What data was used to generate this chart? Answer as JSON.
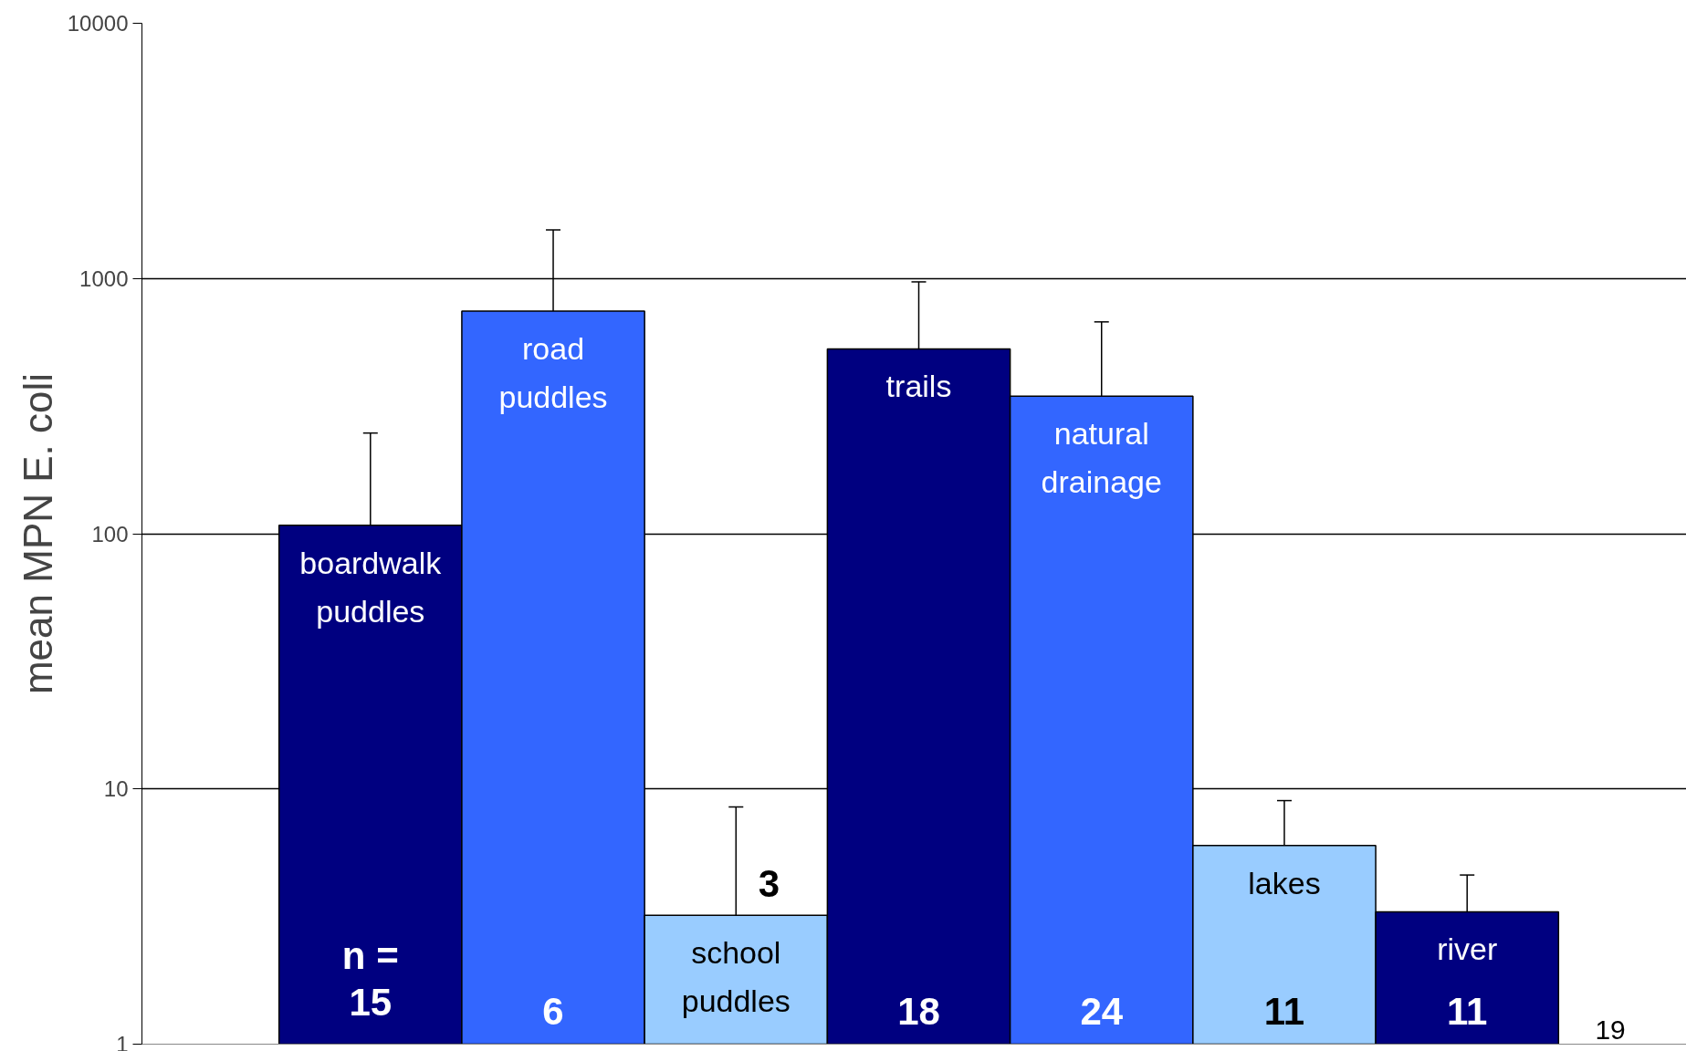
{
  "chart_data": {
    "type": "bar",
    "ylabel": "mean MPN E. coli",
    "log": true,
    "categories": [
      "boardwalk puddles",
      "road puddles",
      "school puddles",
      "trails",
      "natural drainage",
      "lakes",
      "river"
    ],
    "values": [
      108,
      745,
      3.2,
      530,
      346,
      6.0,
      3.3
    ],
    "colors": [
      "#000080",
      "#3366ff",
      "#99ccff",
      "#000080",
      "#3366ff",
      "#99ccff",
      "#000080"
    ],
    "errors": [
      [
        108,
        248
      ],
      [
        745,
        1550
      ],
      [
        3.2,
        8.5
      ],
      [
        530,
        970
      ],
      [
        346,
        676
      ],
      [
        6.0,
        9.0
      ],
      [
        3.3,
        4.6
      ]
    ],
    "ylim": [
      1,
      10000
    ],
    "yticks": [
      1,
      10,
      100,
      1000,
      10000
    ],
    "grid": "y",
    "annotations": [
      "n =\n15",
      "6",
      "3",
      "18",
      "24",
      "11",
      "11",
      "19"
    ]
  }
}
